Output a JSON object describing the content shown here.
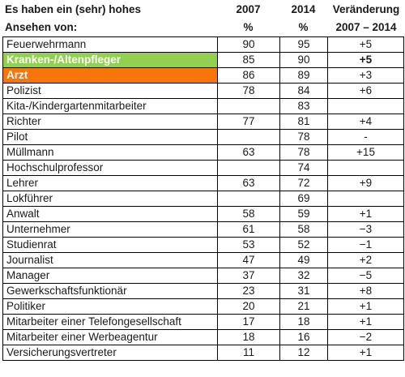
{
  "header": {
    "line1": "Es haben ein (sehr) hohes",
    "line2": "Ansehen von:",
    "col_2007": "2007",
    "col_2014": "2014",
    "col_change": "Veränderung",
    "unit_2007": "%",
    "unit_2014": "%",
    "change_range": "2007 – 2014"
  },
  "highlight_colors": {
    "green": "#92d050",
    "orange": "#f7750b"
  },
  "rows": [
    {
      "name": "Feuerwehrmann",
      "v2007": "90",
      "v2014": "95",
      "change": "+5"
    },
    {
      "name": "Kranken-/Altenpfleger",
      "v2007": "85",
      "v2014": "90",
      "change": "+5"
    },
    {
      "name": "Arzt",
      "v2007": "86",
      "v2014": "89",
      "change": "+3"
    },
    {
      "name": "Polizist",
      "v2007": "78",
      "v2014": "84",
      "change": "+6"
    },
    {
      "name": "Kita-/Kindergartenmitarbeiter",
      "v2007": "",
      "v2014": "83",
      "change": ""
    },
    {
      "name": "Richter",
      "v2007": "77",
      "v2014": "81",
      "change": "+4"
    },
    {
      "name": "Pilot",
      "v2007": "",
      "v2014": "78",
      "change": "-"
    },
    {
      "name": "Müllmann",
      "v2007": "63",
      "v2014": "78",
      "change": "+15"
    },
    {
      "name": "Hochschulprofessor",
      "v2007": "",
      "v2014": "74",
      "change": ""
    },
    {
      "name": "Lehrer",
      "v2007": "63",
      "v2014": "72",
      "change": "+9"
    },
    {
      "name": "Lokführer",
      "v2007": "",
      "v2014": "69",
      "change": ""
    },
    {
      "name": "Anwalt",
      "v2007": "58",
      "v2014": "59",
      "change": "+1"
    },
    {
      "name": "Unternehmer",
      "v2007": "61",
      "v2014": "58",
      "change": "−3"
    },
    {
      "name": "Studienrat",
      "v2007": "53",
      "v2014": "52",
      "change": "−1"
    },
    {
      "name": "Journalist",
      "v2007": "47",
      "v2014": "49",
      "change": "+2"
    },
    {
      "name": "Manager",
      "v2007": "37",
      "v2014": "32",
      "change": "−5"
    },
    {
      "name": "Gewerkschaftsfunktionär",
      "v2007": "23",
      "v2014": "31",
      "change": "+8"
    },
    {
      "name": "Politiker",
      "v2007": "20",
      "v2014": "21",
      "change": "+1"
    },
    {
      "name": "Mitarbeiter einer Telefongesellschaft",
      "v2007": "17",
      "v2014": "18",
      "change": "+1"
    },
    {
      "name": "Mitarbeiter einer Werbeagentur",
      "v2007": "18",
      "v2014": "16",
      "change": "−2"
    },
    {
      "name": "Versicherungsvertreter",
      "v2007": "11",
      "v2014": "12",
      "change": "+1"
    }
  ]
}
